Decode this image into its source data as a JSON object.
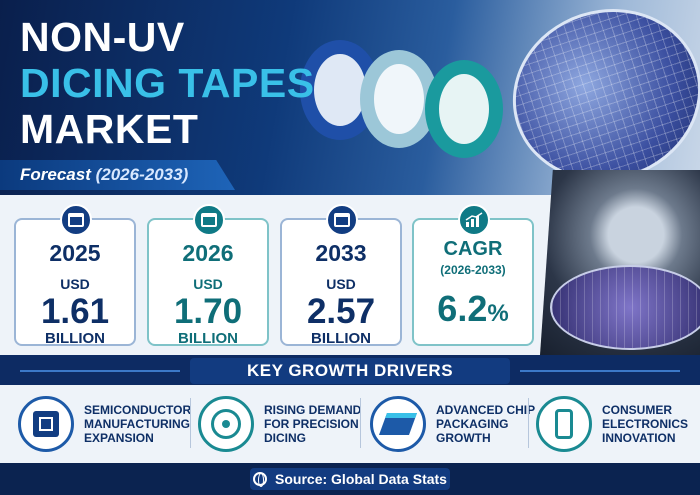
{
  "title": {
    "line1": "NON-UV",
    "line2": "DICING TAPES",
    "line3": "MARKET"
  },
  "forecast": {
    "label": "Forecast",
    "years": "(2026-2033)"
  },
  "cards": [
    {
      "year": "2025",
      "currency": "USD",
      "value": "1.61",
      "unit": "BILLION",
      "icon": "calendar-icon"
    },
    {
      "year": "2026",
      "currency": "USD",
      "value": "1.70",
      "unit": "BILLION",
      "icon": "calendar-icon"
    },
    {
      "year": "2033",
      "currency": "USD",
      "value": "2.57",
      "unit": "BILLION",
      "icon": "calendar-icon"
    }
  ],
  "cagr": {
    "label": "CAGR",
    "period": "(2026-2033)",
    "value": "6.2",
    "pct": "%",
    "icon": "growth-chart-icon"
  },
  "drivers_title": "KEY GROWTH DRIVERS",
  "drivers": [
    {
      "text": "SEMICONDUCTOR\nMANUFACTURING\nEXPANSION",
      "icon": "chip-icon"
    },
    {
      "text": "RISING DEMAND\nFOR PRECISION\nDICING",
      "icon": "target-icon"
    },
    {
      "text": "ADVANCED CHIP\nPACKAGING\nGROWTH",
      "icon": "layers-icon"
    },
    {
      "text": "CONSUMER\nELECTRONICS\nINNOVATION",
      "icon": "phone-icon"
    }
  ],
  "source": "Source: Global Data Stats",
  "colors": {
    "navy": "#0e2f66",
    "teal": "#0f6e78",
    "accent": "#39c0e8"
  }
}
